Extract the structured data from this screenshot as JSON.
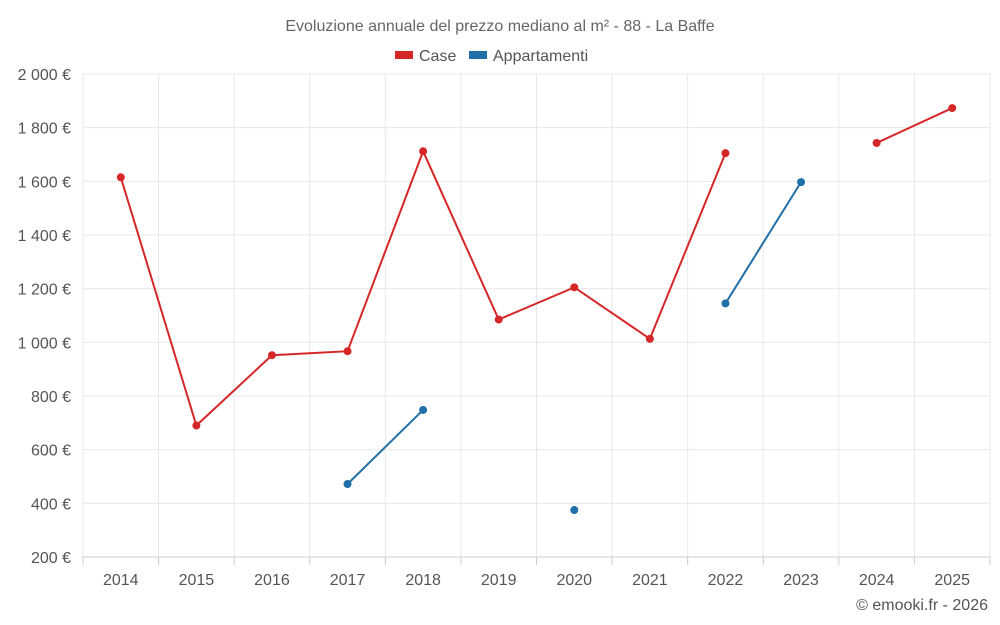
{
  "chart_data": {
    "type": "line",
    "title": "Evoluzione annuale del prezzo mediano al m² - 88 - La Baffe",
    "categories": [
      "2014",
      "2015",
      "2016",
      "2017",
      "2018",
      "2019",
      "2020",
      "2021",
      "2022",
      "2023",
      "2024",
      "2025"
    ],
    "series": [
      {
        "name": "Case",
        "color": "#d62728",
        "values": [
          1615,
          690,
          952,
          967,
          1712,
          1085,
          1205,
          1013,
          1705,
          null,
          1743,
          1873
        ]
      },
      {
        "name": "Appartamenti",
        "color": "#1f6fa8",
        "values": [
          null,
          null,
          null,
          472,
          748,
          null,
          375,
          null,
          1145,
          1597,
          null,
          null
        ]
      }
    ],
    "ylim": [
      200,
      2000
    ],
    "yticks": [
      200,
      400,
      600,
      800,
      1000,
      1200,
      1400,
      1600,
      1800,
      2000
    ],
    "ytick_labels": [
      "200 €",
      "400 €",
      "600 €",
      "800 €",
      "1 000 €",
      "1 200 €",
      "1 400 €",
      "1 600 €",
      "1 800 €",
      "2 000 €"
    ],
    "xlabel": "",
    "ylabel": "",
    "legend": "top-center",
    "grid": true
  },
  "credit": "© emooki.fr - 2026"
}
